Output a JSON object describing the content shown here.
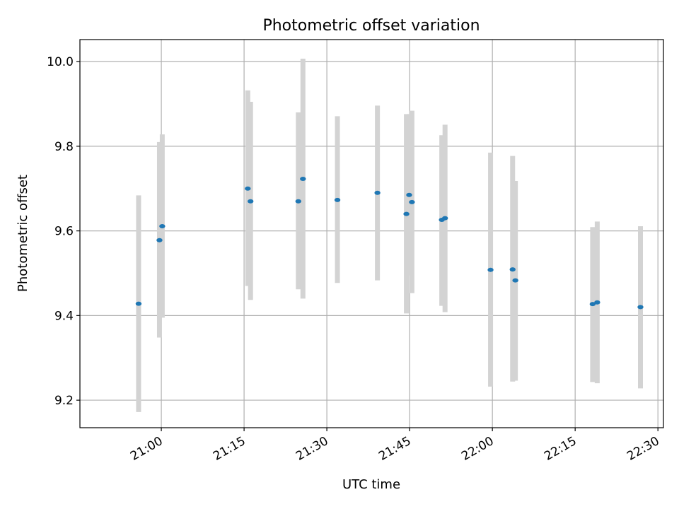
{
  "chart_data": {
    "type": "scatter",
    "title": "Photometric offset variation",
    "xlabel": "UTC time",
    "ylabel": "Photometric offset",
    "grid": true,
    "x_is_time": true,
    "xlim": [
      "20:45:15",
      "22:31:00"
    ],
    "ylim": [
      9.135,
      10.052
    ],
    "x_ticks": [
      "21:00",
      "21:15",
      "21:30",
      "21:45",
      "22:00",
      "22:15",
      "22:30"
    ],
    "y_ticks": [
      "9.2",
      "9.4",
      "9.6",
      "9.8",
      "10.0"
    ],
    "colors": {
      "points": "#1f77b4",
      "errorbars": "#d3d3d3",
      "grid": "#b0b0b0"
    },
    "series": [
      {
        "points": [
          {
            "x": "20:55:53",
            "y": 9.428,
            "ylo": 9.172,
            "yhi": 9.684
          },
          {
            "x": "20:59:40",
            "y": 9.578,
            "ylo": 9.348,
            "yhi": 9.81
          },
          {
            "x": "21:00:10",
            "y": 9.611,
            "ylo": 9.395,
            "yhi": 9.828
          },
          {
            "x": "21:15:40",
            "y": 9.7,
            "ylo": 9.47,
            "yhi": 9.932
          },
          {
            "x": "21:16:10",
            "y": 9.67,
            "ylo": 9.437,
            "yhi": 9.905
          },
          {
            "x": "21:24:50",
            "y": 9.67,
            "ylo": 9.462,
            "yhi": 9.88
          },
          {
            "x": "21:25:40",
            "y": 9.723,
            "ylo": 9.44,
            "yhi": 10.007
          },
          {
            "x": "21:31:55",
            "y": 9.673,
            "ylo": 9.477,
            "yhi": 9.871
          },
          {
            "x": "21:39:10",
            "y": 9.69,
            "ylo": 9.483,
            "yhi": 9.896
          },
          {
            "x": "21:44:25",
            "y": 9.64,
            "ylo": 9.405,
            "yhi": 9.876
          },
          {
            "x": "21:44:55",
            "y": 9.685,
            "ylo": 9.495,
            "yhi": 9.876
          },
          {
            "x": "21:45:25",
            "y": 9.668,
            "ylo": 9.453,
            "yhi": 9.884
          },
          {
            "x": "21:50:50",
            "y": 9.626,
            "ylo": 9.423,
            "yhi": 9.826
          },
          {
            "x": "21:51:25",
            "y": 9.63,
            "ylo": 9.408,
            "yhi": 9.851
          },
          {
            "x": "21:59:40",
            "y": 9.508,
            "ylo": 9.232,
            "yhi": 9.785
          },
          {
            "x": "22:03:40",
            "y": 9.509,
            "ylo": 9.244,
            "yhi": 9.777
          },
          {
            "x": "22:04:10",
            "y": 9.483,
            "ylo": 9.246,
            "yhi": 9.718
          },
          {
            "x": "22:18:10",
            "y": 9.427,
            "ylo": 9.243,
            "yhi": 9.609
          },
          {
            "x": "22:19:00",
            "y": 9.431,
            "ylo": 9.24,
            "yhi": 9.622
          },
          {
            "x": "22:26:50",
            "y": 9.42,
            "ylo": 9.228,
            "yhi": 9.611
          }
        ]
      }
    ]
  }
}
